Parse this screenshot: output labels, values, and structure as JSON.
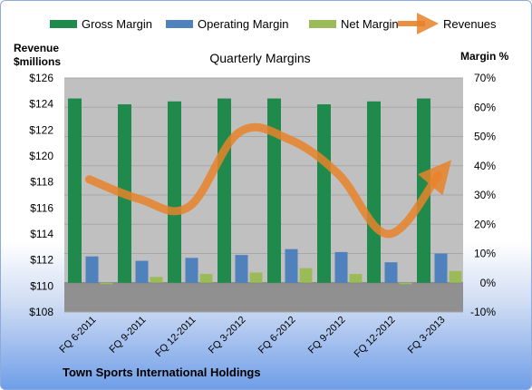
{
  "chart_data": {
    "type": "bar",
    "title": "Quarterly Margins",
    "footer": "Town Sports International Holdings",
    "left_axis_label": [
      "Revenue",
      "$millions"
    ],
    "right_axis_label": "Margin %",
    "categories": [
      "FQ 6-2011",
      "FQ 9-2011",
      "FQ 12-2011",
      "FQ 3-2012",
      "FQ 6-2012",
      "FQ 9-2012",
      "FQ 12-2012",
      "FQ 3-2013"
    ],
    "left_axis": {
      "min": 108,
      "max": 126,
      "step": 2,
      "ticks": [
        "$108",
        "$110",
        "$112",
        "$114",
        "$116",
        "$118",
        "$120",
        "$122",
        "$124",
        "$126"
      ]
    },
    "right_axis": {
      "min": -10,
      "max": 70,
      "step": 10,
      "ticks": [
        "-10%",
        "0%",
        "10%",
        "20%",
        "30%",
        "40%",
        "50%",
        "60%",
        "70%"
      ]
    },
    "series": [
      {
        "name": "Gross Margin",
        "type": "bar",
        "axis": "right",
        "color": "#1f8a4c",
        "values": [
          63,
          61,
          62,
          63,
          63,
          61,
          62,
          63
        ]
      },
      {
        "name": "Operating Margin",
        "type": "bar",
        "axis": "right",
        "color": "#4f81bd",
        "values": [
          9,
          7.5,
          8.5,
          9.5,
          11.5,
          10.5,
          7,
          10
        ]
      },
      {
        "name": "Net Margin",
        "type": "bar",
        "axis": "right",
        "color": "#9bbb59",
        "values": [
          0,
          2,
          3,
          3.5,
          5,
          3,
          0,
          4
        ]
      },
      {
        "name": "Revenues",
        "type": "line",
        "axis": "left",
        "color": "#e8832a",
        "values": [
          118.2,
          116.7,
          116.1,
          121.8,
          121.3,
          118.6,
          114.0,
          118.5
        ]
      }
    ],
    "colors": {
      "plot_bg": "#c0c0c0",
      "floor": "#909090"
    },
    "legend": "top"
  }
}
